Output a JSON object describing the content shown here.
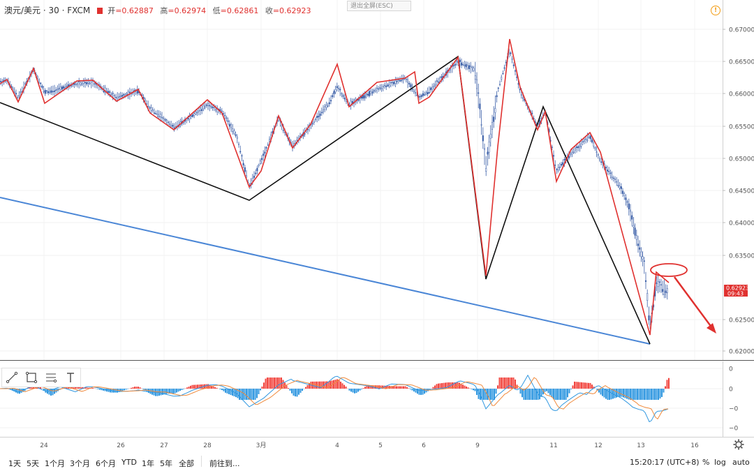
{
  "header": {
    "symbol": "澳元/美元 · 30 · FXCM",
    "open_label": "开",
    "open_value": "=0.62887",
    "high_label": "高",
    "high_value": "=0.62974",
    "low_label": "低",
    "low_value": "=0.62861",
    "close_label": "收",
    "close_value": "=0.62923",
    "exit_fullscreen": "退出全屏(ESC)"
  },
  "price_axis": {
    "ticks": [
      "0.67000",
      "0.66500",
      "0.66000",
      "0.65500",
      "0.65000",
      "0.64500",
      "0.64000",
      "0.63500",
      "0.62500",
      "0.62000"
    ],
    "current_price": "0.62923",
    "countdown": "09:43"
  },
  "macd_axis": {
    "ticks": [
      "0",
      "0",
      "−0",
      "−0"
    ]
  },
  "time_axis": {
    "labels": [
      "24",
      "26",
      "27",
      "28",
      "3月",
      "4",
      "5",
      "6",
      "9",
      "11",
      "12",
      "13",
      "16"
    ]
  },
  "footer": {
    "ranges": [
      "1天",
      "5天",
      "1个月",
      "3个月",
      "6个月",
      "YTD",
      "1年",
      "5年",
      "全部"
    ],
    "goto": "前往到...",
    "clock": "15:20:17 (UTC+8)",
    "percent": "%",
    "log": "log",
    "auto": "auto"
  },
  "colors": {
    "up": "#3b5fa8",
    "down": "#3b5fa8",
    "zigzag_red": "#e0312f",
    "zigzag_black": "#111111",
    "trend_blue": "#4a86d6",
    "annotation": "#e0312f",
    "macd_pos": "#f2443e",
    "macd_neg": "#2f97e0"
  },
  "tools": [
    "trend-line-icon",
    "rectangle-icon",
    "fib-icon",
    "text-icon"
  ]
}
